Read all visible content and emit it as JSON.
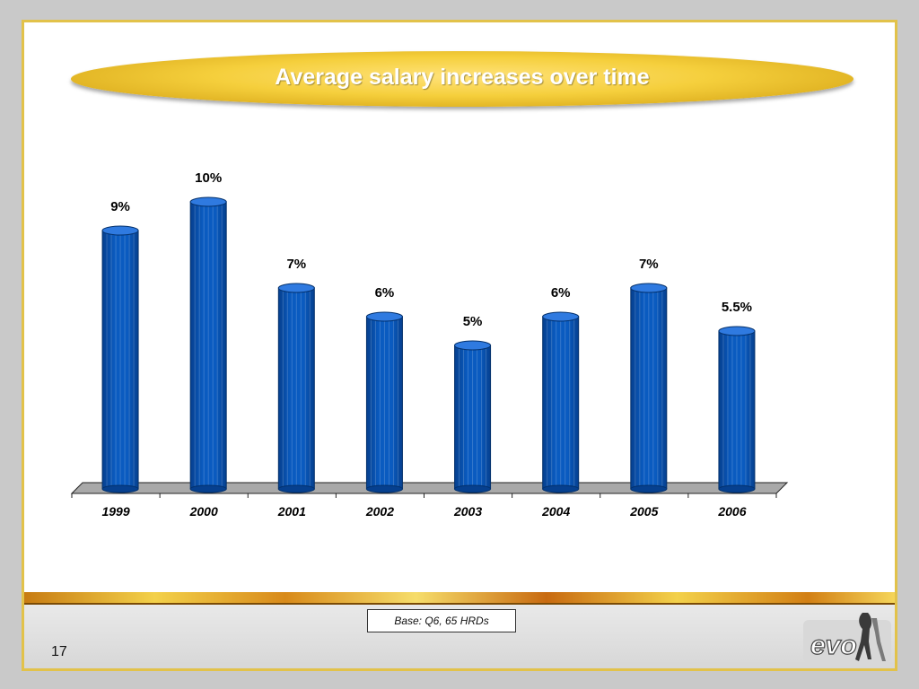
{
  "slide": {
    "title": "Average salary increases over time",
    "base_note": "Base: Q6, 65 HRDs",
    "page_number": "17",
    "logo_text": "evo"
  },
  "colors": {
    "bar": "#0a5bc0",
    "bar_dark": "#06408f",
    "bar_top": "#2f7ae0",
    "frame": "#e2c24a",
    "title_pill": "#f5cf3c"
  },
  "chart_data": {
    "type": "bar",
    "title": "Average salary increases over time",
    "categories": [
      "1999",
      "2000",
      "2001",
      "2002",
      "2003",
      "2004",
      "2005",
      "2006"
    ],
    "values": [
      9,
      10,
      7,
      6,
      5,
      6,
      7,
      5.5
    ],
    "data_labels": [
      "9%",
      "10%",
      "7%",
      "6%",
      "5%",
      "6%",
      "7%",
      "5.5%"
    ],
    "ylim": [
      0,
      10
    ],
    "xlabel": "",
    "ylabel": "",
    "grid": false,
    "legend": "none"
  }
}
